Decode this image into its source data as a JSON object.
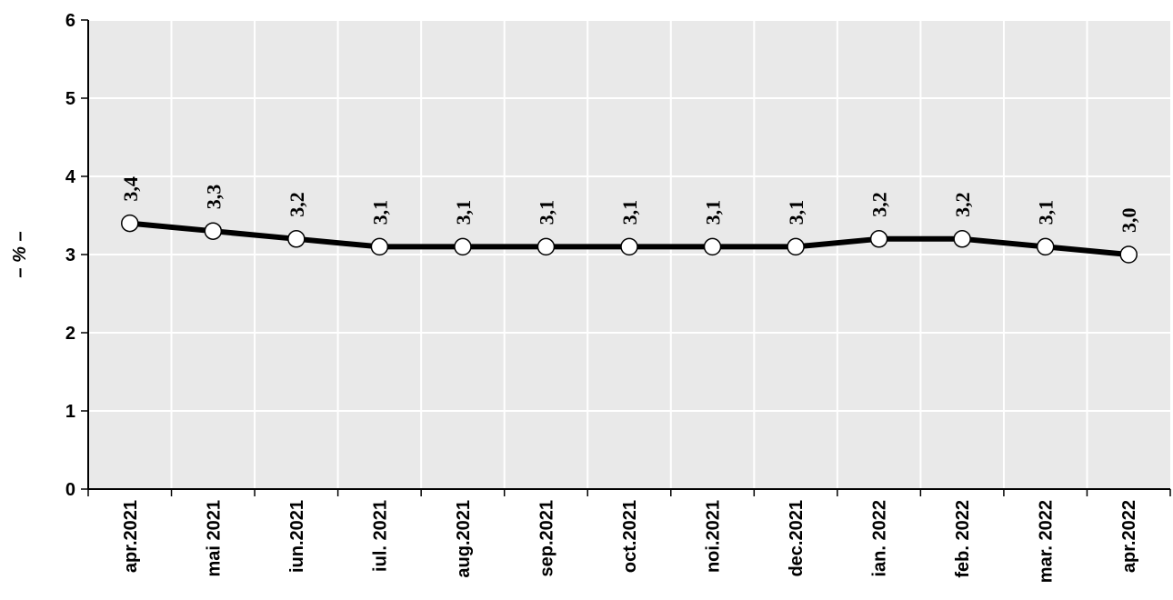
{
  "chart_data": {
    "type": "line",
    "title": "",
    "xlabel": "",
    "ylabel": "– % –",
    "ylim": [
      0,
      6
    ],
    "yticks": [
      "0",
      "1",
      "2",
      "3",
      "4",
      "5",
      "6"
    ],
    "grid": true,
    "categories": [
      "apr.2021",
      "mai 2021",
      "iun.2021",
      "iul. 2021",
      "aug.2021",
      "sep.2021",
      "oct.2021",
      "noi.2021",
      "dec.2021",
      "ian. 2022",
      "feb. 2022",
      "mar. 2022",
      "apr.2022"
    ],
    "series": [
      {
        "values": [
          3.4,
          3.3,
          3.2,
          3.1,
          3.1,
          3.1,
          3.1,
          3.1,
          3.1,
          3.2,
          3.2,
          3.1,
          3.0
        ],
        "labels": [
          "3,4",
          "3,3",
          "3,2",
          "3,1",
          "3,1",
          "3,1",
          "3,1",
          "3,1",
          "3,1",
          "3,2",
          "3,2",
          "3,1",
          "3,0"
        ]
      }
    ],
    "colors": {
      "plot_bg": "#e9e9e9",
      "grid": "#ffffff",
      "line": "#000000",
      "marker_fill": "#ffffff"
    }
  }
}
